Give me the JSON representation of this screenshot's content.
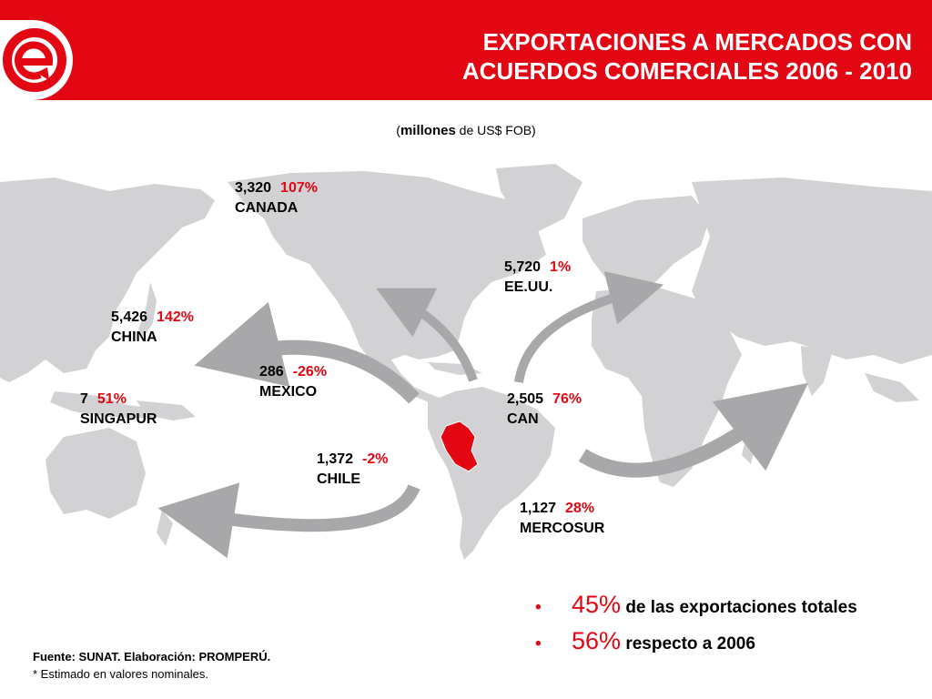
{
  "header": {
    "title_line1": "EXPORTACIONES A MERCADOS CON",
    "title_line2": "ACUERDOS COMERCIALES 2006 - 2010",
    "brand_color": "#e30613"
  },
  "subtitle": {
    "open": "(",
    "bold": "millones",
    "rest": " de US$ FOB)"
  },
  "markets": [
    {
      "value": "3,320",
      "change": "107%",
      "name": "CANADA"
    },
    {
      "value": "5,720",
      "change": "1%",
      "name": "EE.UU."
    },
    {
      "value": "5,426",
      "change": "142%",
      "name": "CHINA"
    },
    {
      "value": "286",
      "change": "-26%",
      "name": "MEXICO"
    },
    {
      "value": "7",
      "change": "51%",
      "name": "SINGAPUR"
    },
    {
      "value": "2,505",
      "change": "76%",
      "name": "CAN"
    },
    {
      "value": "1,372",
      "change": "-2%",
      "name": "CHILE"
    },
    {
      "value": "1,127",
      "change": "28%",
      "name": "MERCOSUR"
    }
  ],
  "highlight_country": "Peru",
  "bullets": [
    {
      "big": "45%",
      "text": " de las exportaciones totales"
    },
    {
      "big": "56%",
      "text": " respecto a 2006"
    }
  ],
  "footer": {
    "source": "Fuente: SUNAT. Elaboración: PROMPERÚ.",
    "note": "* Estimado en valores nominales."
  },
  "colors": {
    "land": "#d2d2d4",
    "arrow": "#a8a8aa",
    "accent": "#e30613"
  }
}
